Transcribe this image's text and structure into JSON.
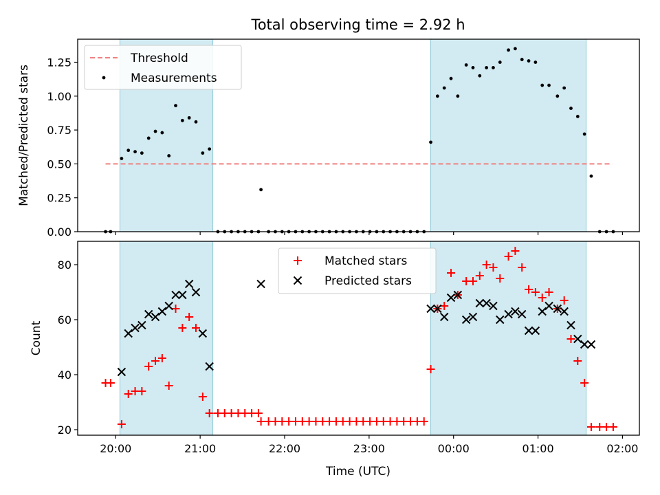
{
  "chart_data": {
    "title": "Total observing time = 2.92 h",
    "xlabel": "Time (UTC)",
    "x_unit": "hours (UTC)",
    "xlim": [
      19.55,
      26.2
    ],
    "xticks": [
      {
        "value": 20,
        "label": "20:00"
      },
      {
        "value": 21,
        "label": "21:00"
      },
      {
        "value": 22,
        "label": "22:00"
      },
      {
        "value": 23,
        "label": "23:00"
      },
      {
        "value": 24,
        "label": "00:00"
      },
      {
        "value": 25,
        "label": "01:00"
      },
      {
        "value": 26,
        "label": "02:00"
      }
    ],
    "shaded_intervals": [
      [
        20.05,
        21.15
      ],
      [
        23.73,
        25.57
      ]
    ],
    "shade_color": "#add8e6",
    "panels": [
      {
        "type": "scatter",
        "ylabel": "Matched/Predicted stars",
        "ylim": [
          0,
          1.42
        ],
        "yticks": [
          0,
          0.25,
          0.5,
          0.75,
          1.0,
          1.25
        ],
        "ytick_labels": [
          "0.00",
          "0.25",
          "0.50",
          "0.75",
          "1.00",
          "1.25"
        ],
        "threshold": {
          "name": "Threshold",
          "value": 0.5,
          "x_range": [
            19.88,
            25.88
          ],
          "color": "#f08080"
        },
        "legend": {
          "position": "upper-left",
          "entries": [
            "Threshold",
            "Measurements"
          ]
        },
        "series": [
          {
            "name": "Measurements",
            "color": "#000000",
            "marker": "dot",
            "points": [
              [
                19.88,
                0
              ],
              [
                19.94,
                0
              ],
              [
                20.07,
                0.54
              ],
              [
                20.15,
                0.6
              ],
              [
                20.23,
                0.59
              ],
              [
                20.31,
                0.58
              ],
              [
                20.39,
                0.69
              ],
              [
                20.47,
                0.74
              ],
              [
                20.55,
                0.73
              ],
              [
                20.63,
                0.56
              ],
              [
                20.71,
                0.93
              ],
              [
                20.79,
                0.82
              ],
              [
                20.87,
                0.84
              ],
              [
                20.95,
                0.81
              ],
              [
                21.03,
                0.58
              ],
              [
                21.11,
                0.61
              ],
              [
                21.21,
                0
              ],
              [
                21.29,
                0
              ],
              [
                21.37,
                0
              ],
              [
                21.45,
                0
              ],
              [
                21.53,
                0
              ],
              [
                21.61,
                0
              ],
              [
                21.69,
                0
              ],
              [
                21.72,
                0.31
              ],
              [
                21.81,
                0
              ],
              [
                21.89,
                0
              ],
              [
                21.97,
                0
              ],
              [
                22.05,
                0
              ],
              [
                22.13,
                0
              ],
              [
                22.21,
                0
              ],
              [
                22.29,
                0
              ],
              [
                22.37,
                0
              ],
              [
                22.45,
                0
              ],
              [
                22.53,
                0
              ],
              [
                22.61,
                0
              ],
              [
                22.69,
                0
              ],
              [
                22.77,
                0
              ],
              [
                22.85,
                0
              ],
              [
                22.93,
                0
              ],
              [
                23.01,
                0
              ],
              [
                23.09,
                0
              ],
              [
                23.17,
                0
              ],
              [
                23.25,
                0
              ],
              [
                23.33,
                0
              ],
              [
                23.41,
                0
              ],
              [
                23.49,
                0
              ],
              [
                23.57,
                0
              ],
              [
                23.65,
                0
              ],
              [
                23.73,
                0.66
              ],
              [
                23.81,
                1.0
              ],
              [
                23.89,
                1.06
              ],
              [
                23.97,
                1.13
              ],
              [
                24.05,
                1.0
              ],
              [
                24.15,
                1.23
              ],
              [
                24.23,
                1.21
              ],
              [
                24.31,
                1.15
              ],
              [
                24.39,
                1.21
              ],
              [
                24.47,
                1.21
              ],
              [
                24.55,
                1.25
              ],
              [
                24.65,
                1.34
              ],
              [
                24.73,
                1.35
              ],
              [
                24.81,
                1.27
              ],
              [
                24.89,
                1.26
              ],
              [
                24.97,
                1.25
              ],
              [
                25.05,
                1.08
              ],
              [
                25.13,
                1.08
              ],
              [
                25.23,
                1.0
              ],
              [
                25.31,
                1.06
              ],
              [
                25.39,
                0.91
              ],
              [
                25.47,
                0.85
              ],
              [
                25.55,
                0.72
              ],
              [
                25.63,
                0.41
              ],
              [
                25.73,
                0
              ],
              [
                25.81,
                0
              ],
              [
                25.89,
                0
              ]
            ]
          }
        ]
      },
      {
        "type": "scatter",
        "ylabel": "Count",
        "ylim": [
          18,
          88.5
        ],
        "yticks": [
          20,
          40,
          60,
          80
        ],
        "ytick_labels": [
          "20",
          "40",
          "60",
          "80"
        ],
        "legend": {
          "position": "upper-center",
          "entries": [
            "Matched stars",
            "Predicted stars"
          ]
        },
        "series": [
          {
            "name": "Matched stars",
            "color": "#ff0000",
            "marker": "plus",
            "points": [
              [
                19.88,
                37
              ],
              [
                19.94,
                37
              ],
              [
                20.07,
                22
              ],
              [
                20.15,
                33
              ],
              [
                20.23,
                34
              ],
              [
                20.31,
                34
              ],
              [
                20.39,
                43
              ],
              [
                20.47,
                45
              ],
              [
                20.55,
                46
              ],
              [
                20.63,
                36
              ],
              [
                20.71,
                64
              ],
              [
                20.79,
                57
              ],
              [
                20.87,
                61
              ],
              [
                20.95,
                57
              ],
              [
                21.03,
                32
              ],
              [
                21.11,
                26
              ],
              [
                21.21,
                26
              ],
              [
                21.29,
                26
              ],
              [
                21.37,
                26
              ],
              [
                21.45,
                26
              ],
              [
                21.53,
                26
              ],
              [
                21.61,
                26
              ],
              [
                21.69,
                26
              ],
              [
                21.72,
                23
              ],
              [
                21.81,
                23
              ],
              [
                21.89,
                23
              ],
              [
                21.97,
                23
              ],
              [
                22.05,
                23
              ],
              [
                22.13,
                23
              ],
              [
                22.21,
                23
              ],
              [
                22.29,
                23
              ],
              [
                22.37,
                23
              ],
              [
                22.45,
                23
              ],
              [
                22.53,
                23
              ],
              [
                22.61,
                23
              ],
              [
                22.69,
                23
              ],
              [
                22.77,
                23
              ],
              [
                22.85,
                23
              ],
              [
                22.93,
                23
              ],
              [
                23.01,
                23
              ],
              [
                23.09,
                23
              ],
              [
                23.17,
                23
              ],
              [
                23.25,
                23
              ],
              [
                23.33,
                23
              ],
              [
                23.41,
                23
              ],
              [
                23.49,
                23
              ],
              [
                23.57,
                23
              ],
              [
                23.65,
                23
              ],
              [
                23.73,
                42
              ],
              [
                23.81,
                64
              ],
              [
                23.89,
                65
              ],
              [
                23.97,
                77
              ],
              [
                24.05,
                69
              ],
              [
                24.15,
                74
              ],
              [
                24.23,
                74
              ],
              [
                24.31,
                76
              ],
              [
                24.39,
                80
              ],
              [
                24.47,
                79
              ],
              [
                24.55,
                75
              ],
              [
                24.65,
                83
              ],
              [
                24.73,
                85
              ],
              [
                24.81,
                79
              ],
              [
                24.89,
                71
              ],
              [
                24.97,
                70
              ],
              [
                25.05,
                68
              ],
              [
                25.13,
                70
              ],
              [
                25.23,
                64
              ],
              [
                25.31,
                67
              ],
              [
                25.39,
                53
              ],
              [
                25.47,
                45
              ],
              [
                25.55,
                37
              ],
              [
                25.63,
                21
              ],
              [
                25.73,
                21
              ],
              [
                25.81,
                21
              ],
              [
                25.89,
                21
              ]
            ]
          },
          {
            "name": "Predicted stars",
            "color": "#000000",
            "marker": "x",
            "points": [
              [
                20.07,
                41
              ],
              [
                20.15,
                55
              ],
              [
                20.23,
                57
              ],
              [
                20.31,
                58
              ],
              [
                20.39,
                62
              ],
              [
                20.47,
                61
              ],
              [
                20.55,
                63
              ],
              [
                20.63,
                65
              ],
              [
                20.71,
                69
              ],
              [
                20.79,
                69
              ],
              [
                20.87,
                73
              ],
              [
                20.95,
                70
              ],
              [
                21.03,
                55
              ],
              [
                21.11,
                43
              ],
              [
                21.72,
                73
              ],
              [
                23.73,
                64
              ],
              [
                23.81,
                64
              ],
              [
                23.89,
                61
              ],
              [
                23.97,
                68
              ],
              [
                24.05,
                69
              ],
              [
                24.15,
                60
              ],
              [
                24.23,
                61
              ],
              [
                24.31,
                66
              ],
              [
                24.39,
                66
              ],
              [
                24.47,
                65
              ],
              [
                24.55,
                60
              ],
              [
                24.65,
                62
              ],
              [
                24.73,
                63
              ],
              [
                24.81,
                62
              ],
              [
                24.89,
                56
              ],
              [
                24.97,
                56
              ],
              [
                25.05,
                63
              ],
              [
                25.13,
                65
              ],
              [
                25.23,
                64
              ],
              [
                25.31,
                63
              ],
              [
                25.39,
                58
              ],
              [
                25.47,
                53
              ],
              [
                25.55,
                51
              ],
              [
                25.63,
                51
              ]
            ]
          }
        ]
      }
    ]
  }
}
